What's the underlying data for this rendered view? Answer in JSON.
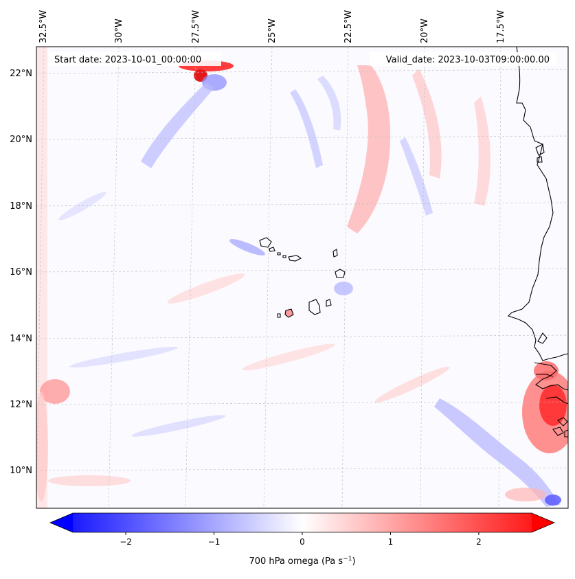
{
  "map": {
    "title_left": "Start date: 2023-10-01_00:00:00",
    "title_right": "Valid_date: 2023-10-03T09:00:00.00",
    "lon_labels": [
      "32.5°W",
      "30°W",
      "27.5°W",
      "25°W",
      "22.5°W",
      "20°W",
      "17.5°W"
    ],
    "lat_labels": [
      "22°N",
      "20°N",
      "18°N",
      "16°N",
      "14°N",
      "12°N",
      "10°N"
    ],
    "variable": "700 hPa omega",
    "units_base": "Pa s",
    "units_exp": "−1"
  },
  "colorbar": {
    "ticks": [
      "−2",
      "−1",
      "0",
      "1",
      "2"
    ],
    "min": -2.6,
    "max": 2.6,
    "color_low": "#0000ff",
    "color_mid": "#ffffff",
    "color_high": "#ff0000"
  },
  "colors": {
    "coast": "#000000",
    "grid": "#bbbbbb"
  }
}
